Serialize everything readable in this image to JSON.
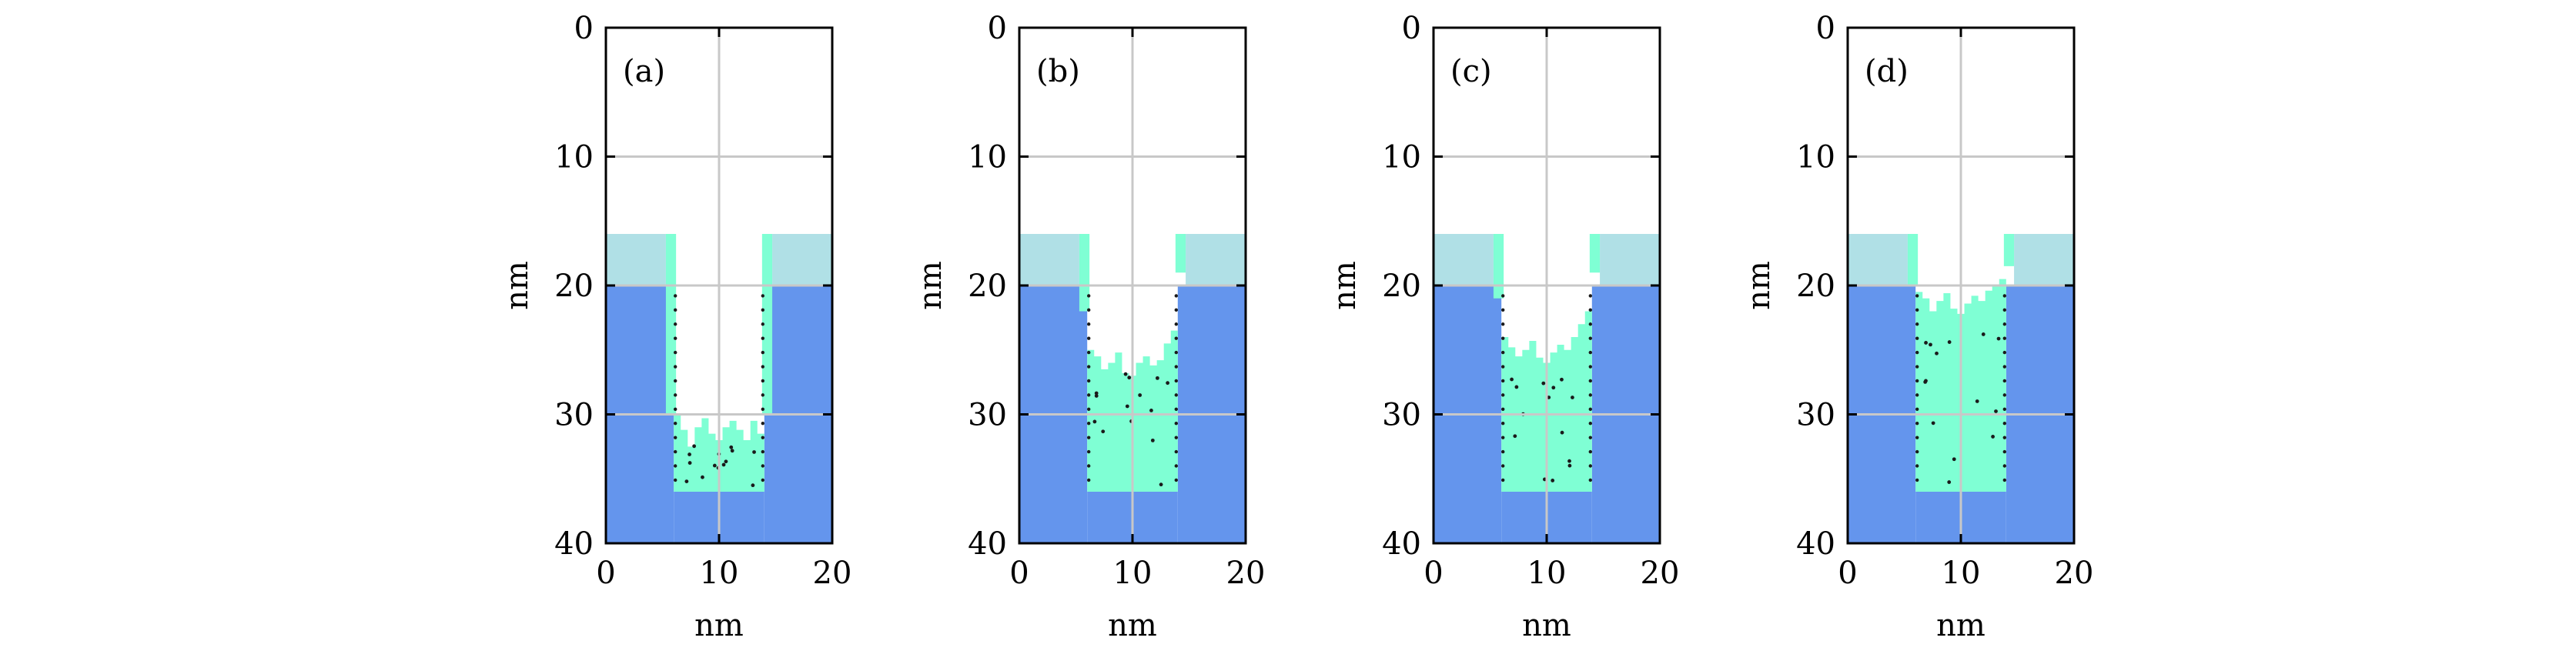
{
  "colors": {
    "substrate": "#6495ED",
    "mask": "#B0E0E6",
    "deposit": "#7FFFD4",
    "grid": "#C8C8C8",
    "axis": "#000000",
    "dots": "#1a1a1a"
  },
  "chart_data": [
    {
      "type": "area",
      "panel_label": "(a)",
      "xlabel": "nm",
      "ylabel": "nm",
      "xlim": [
        0,
        20
      ],
      "ylim": [
        0,
        40
      ],
      "y_inverted": true,
      "x_ticks": [
        "0",
        "10",
        "20"
      ],
      "y_ticks": [
        "0",
        "10",
        "20",
        "30",
        "40"
      ],
      "grid": true,
      "regions": {
        "mask": {
          "y_range": [
            16,
            20
          ],
          "trench_x": [
            6,
            14
          ]
        },
        "substrate": {
          "y_range": [
            20,
            40
          ],
          "trench_x": [
            6,
            14
          ],
          "trench_bottom": 36
        },
        "deposit_fill_top_nm": 31.5,
        "deposit_profile_top_nm": [
          30,
          31.2,
          32.5,
          31,
          30.3,
          31.5,
          32,
          31,
          30.5,
          31.2,
          32,
          30.5,
          31.5
        ],
        "left_wall_deposit_to_nm": 30,
        "right_wall_deposit_to_nm": 30
      }
    },
    {
      "type": "area",
      "panel_label": "(b)",
      "xlabel": "nm",
      "ylabel": "nm",
      "xlim": [
        0,
        20
      ],
      "ylim": [
        0,
        40
      ],
      "y_inverted": true,
      "x_ticks": [
        "0",
        "10",
        "20"
      ],
      "y_ticks": [
        "0",
        "10",
        "20",
        "30",
        "40"
      ],
      "grid": true,
      "regions": {
        "mask": {
          "y_range": [
            16,
            20
          ],
          "trench_x": [
            6,
            14
          ]
        },
        "substrate": {
          "y_range": [
            20,
            40
          ],
          "trench_x": [
            6,
            14
          ],
          "trench_bottom": 36
        },
        "deposit_fill_top_nm": 26,
        "deposit_profile_top_nm": [
          25,
          25.5,
          26.5,
          26,
          25.2,
          26.8,
          27,
          26,
          25.5,
          26.2,
          25.8,
          24.5,
          23.5
        ],
        "left_wall_deposit_to_nm": 22,
        "right_wall_deposit_to_nm": 19
      }
    },
    {
      "type": "area",
      "panel_label": "(c)",
      "xlabel": "nm",
      "ylabel": "nm",
      "xlim": [
        0,
        20
      ],
      "ylim": [
        0,
        40
      ],
      "y_inverted": true,
      "x_ticks": [
        "0",
        "10",
        "20"
      ],
      "y_ticks": [
        "0",
        "10",
        "20",
        "30",
        "40"
      ],
      "grid": true,
      "regions": {
        "mask": {
          "y_range": [
            16,
            20
          ],
          "trench_x": [
            6,
            14
          ]
        },
        "substrate": {
          "y_range": [
            20,
            40
          ],
          "trench_x": [
            6,
            14
          ],
          "trench_bottom": 36
        },
        "deposit_fill_top_nm": 25,
        "deposit_profile_top_nm": [
          24,
          24.8,
          25.5,
          25,
          24.3,
          25.6,
          26,
          25.2,
          24.6,
          25,
          24,
          23,
          22
        ],
        "left_wall_deposit_to_nm": 21,
        "right_wall_deposit_to_nm": 19
      }
    },
    {
      "type": "area",
      "panel_label": "(d)",
      "xlabel": "nm",
      "ylabel": "nm",
      "xlim": [
        0,
        20
      ],
      "ylim": [
        0,
        40
      ],
      "y_inverted": true,
      "x_ticks": [
        "0",
        "10",
        "20"
      ],
      "y_ticks": [
        "0",
        "10",
        "20",
        "30",
        "40"
      ],
      "grid": true,
      "regions": {
        "mask": {
          "y_range": [
            16,
            20
          ],
          "trench_x": [
            6,
            14
          ]
        },
        "substrate": {
          "y_range": [
            20,
            40
          ],
          "trench_x": [
            6,
            14
          ],
          "trench_bottom": 36
        },
        "deposit_fill_top_nm": 21.5,
        "deposit_profile_top_nm": [
          20.5,
          21,
          22,
          21.2,
          20.6,
          21.8,
          22.2,
          21.4,
          20.8,
          21.2,
          20.4,
          20,
          19.5
        ],
        "left_wall_deposit_to_nm": 20,
        "right_wall_deposit_to_nm": 18.5
      }
    }
  ]
}
